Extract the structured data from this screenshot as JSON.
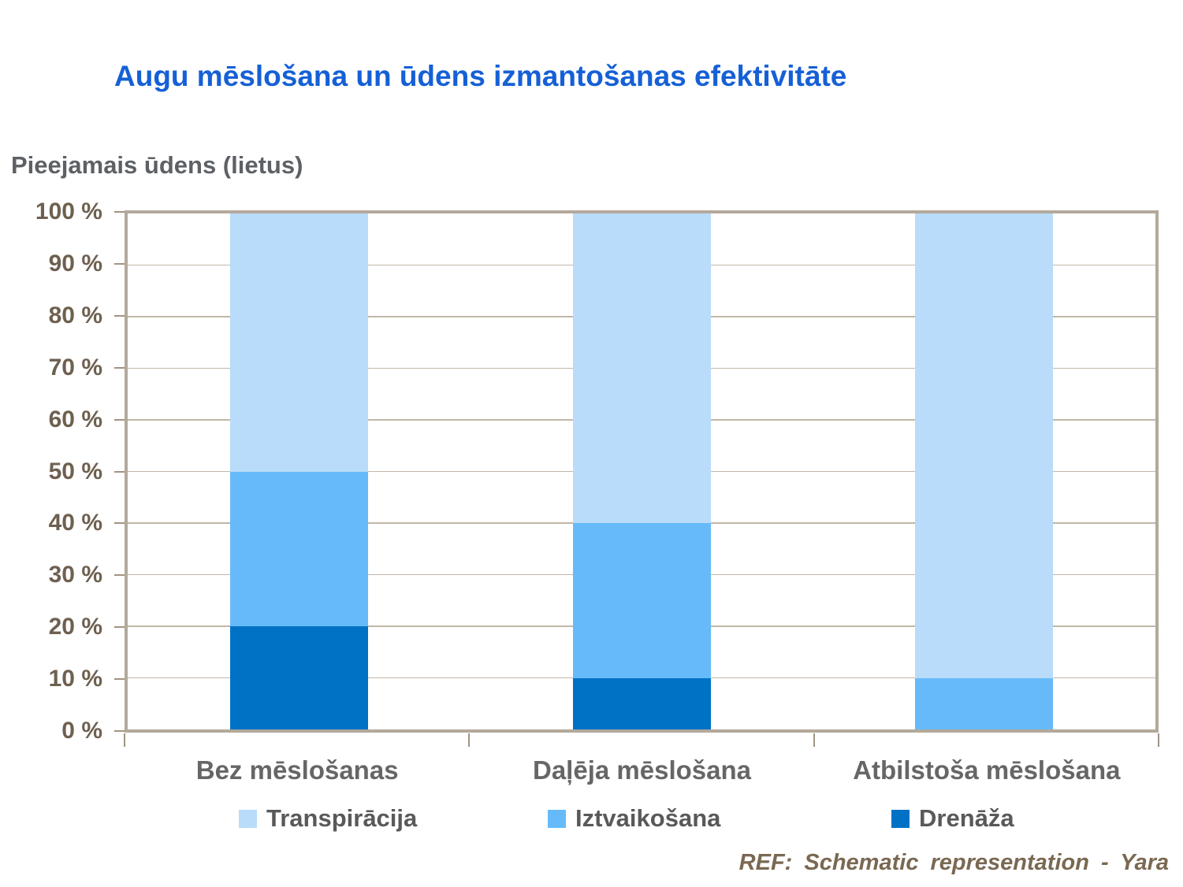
{
  "title": "Augu mēslošana un ūdens izmantošanas efektivitāte",
  "axis_title": "Pieejamais ūdens (lietus)",
  "footer": "REF: Schematic representation - Yara",
  "colors": {
    "title": "#1560d6",
    "axis_title": "#5d6166",
    "tick_label": "#6e6050",
    "category_label": "#666666",
    "legend_label": "#595959",
    "footer": "#7a6852",
    "plot_border": "#b3a99b",
    "gridline": "#c2b7a8",
    "tick_mark": "#a39383",
    "background": "#ffffff"
  },
  "chart_data": {
    "type": "bar",
    "stacked": true,
    "title": "Augu mēslošana un ūdens izmantošanas efektivitāte",
    "ylabel": "Pieejamais ūdens (lietus)",
    "categories": [
      "Bez mēslošanas",
      "Daļēja mēslošana",
      "Atbilstoša mēslošana"
    ],
    "series": [
      {
        "name": "Drenāža",
        "color": "#0072c6",
        "values": [
          20,
          10,
          0
        ]
      },
      {
        "name": "Iztvaikošana",
        "color": "#66baf9",
        "values": [
          30,
          30,
          10
        ]
      },
      {
        "name": "Transpirācija",
        "color": "#b8dcfa",
        "values": [
          50,
          60,
          90
        ]
      }
    ],
    "legend_order": [
      "Transpirācija",
      "Iztvaikošana",
      "Drenāža"
    ],
    "ylim": [
      0,
      100
    ],
    "ytick_step": 10,
    "ytick_suffix": " %",
    "grid": true,
    "legend_position": "bottom"
  }
}
